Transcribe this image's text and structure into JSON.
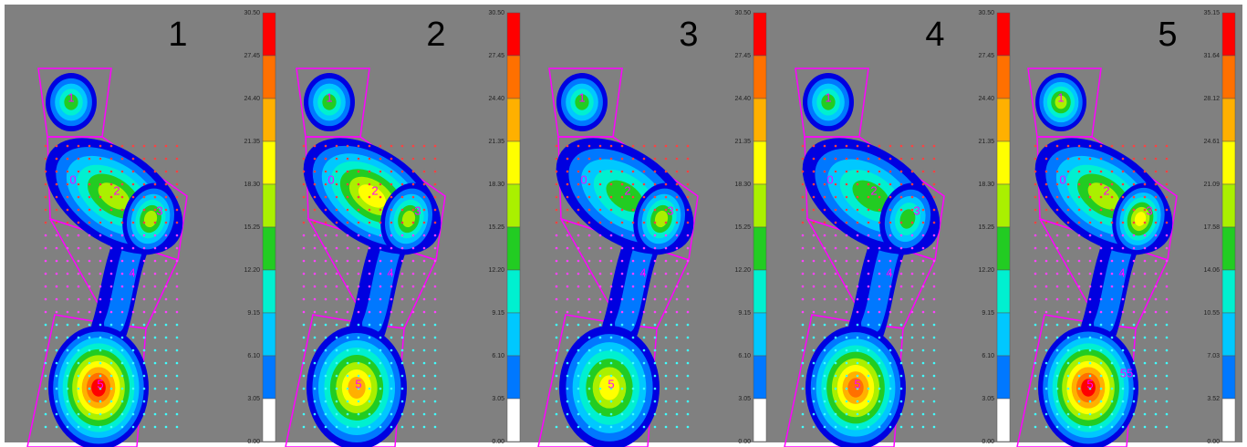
{
  "panels": [
    {
      "label": "1",
      "scale": [
        "30.50",
        "27.45",
        "24.40",
        "21.35",
        "18.30",
        "15.25",
        "12.20",
        "9.15",
        "6.10",
        "3.05",
        "0.00"
      ],
      "regions": [
        "1",
        "0",
        "2",
        "3",
        "4",
        "5"
      ]
    },
    {
      "label": "2",
      "scale": [
        "30.50",
        "27.45",
        "24.40",
        "21.35",
        "18.30",
        "15.25",
        "12.20",
        "9.15",
        "6.10",
        "3.05",
        "0.00"
      ],
      "regions": [
        "1",
        "0",
        "2",
        "3",
        "4",
        "5"
      ]
    },
    {
      "label": "3",
      "scale": [
        "30.50",
        "27.45",
        "24.40",
        "21.35",
        "18.30",
        "15.25",
        "12.20",
        "9.15",
        "6.10",
        "3.05",
        "0.00"
      ],
      "regions": [
        "1",
        "0",
        "2",
        "3",
        "4",
        "5"
      ]
    },
    {
      "label": "4",
      "scale": [
        "30.50",
        "27.45",
        "24.40",
        "21.35",
        "18.30",
        "15.25",
        "12.20",
        "9.15",
        "6.10",
        "3.05",
        "0.00"
      ],
      "regions": [
        "1",
        "0",
        "2",
        "3",
        "4",
        "5"
      ]
    },
    {
      "label": "5",
      "scale": [
        "35.15",
        "31.64",
        "28.12",
        "24.61",
        "21.09",
        "17.58",
        "14.06",
        "10.55",
        "7.03",
        "3.52",
        "0.00"
      ],
      "regions": [
        "1",
        "0",
        "2",
        "3",
        "4",
        "5",
        "55"
      ]
    }
  ]
}
